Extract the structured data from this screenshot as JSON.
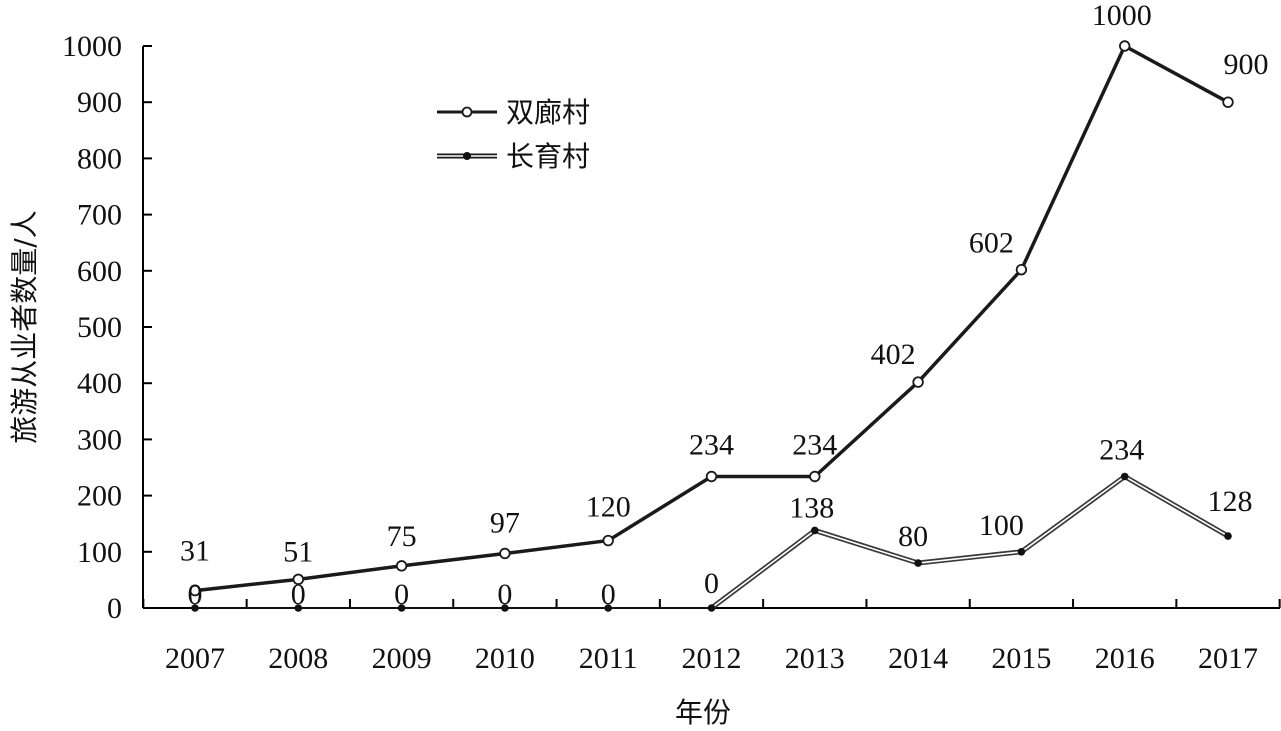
{
  "chart_data": {
    "type": "line",
    "xlabel": "年份",
    "ylabel": "旅游从业者数量/人",
    "ylim": [
      0,
      1000
    ],
    "yticks": [
      0,
      100,
      200,
      300,
      400,
      500,
      600,
      700,
      800,
      900,
      1000
    ],
    "categories": [
      "2007",
      "2008",
      "2009",
      "2010",
      "2011",
      "2012",
      "2013",
      "2014",
      "2015",
      "2016",
      "2017"
    ],
    "series": [
      {
        "name": "双廊村",
        "marker": "open-circle",
        "color": "#1a1a1a",
        "values": [
          31,
          51,
          75,
          97,
          120,
          234,
          234,
          402,
          602,
          1000,
          900
        ]
      },
      {
        "name": "长育村",
        "marker": "filled-circle",
        "color": "#1a1a1a",
        "values": [
          0,
          0,
          0,
          0,
          0,
          0,
          138,
          80,
          100,
          234,
          128
        ]
      }
    ],
    "grid": false,
    "legend_position": "top-left"
  }
}
